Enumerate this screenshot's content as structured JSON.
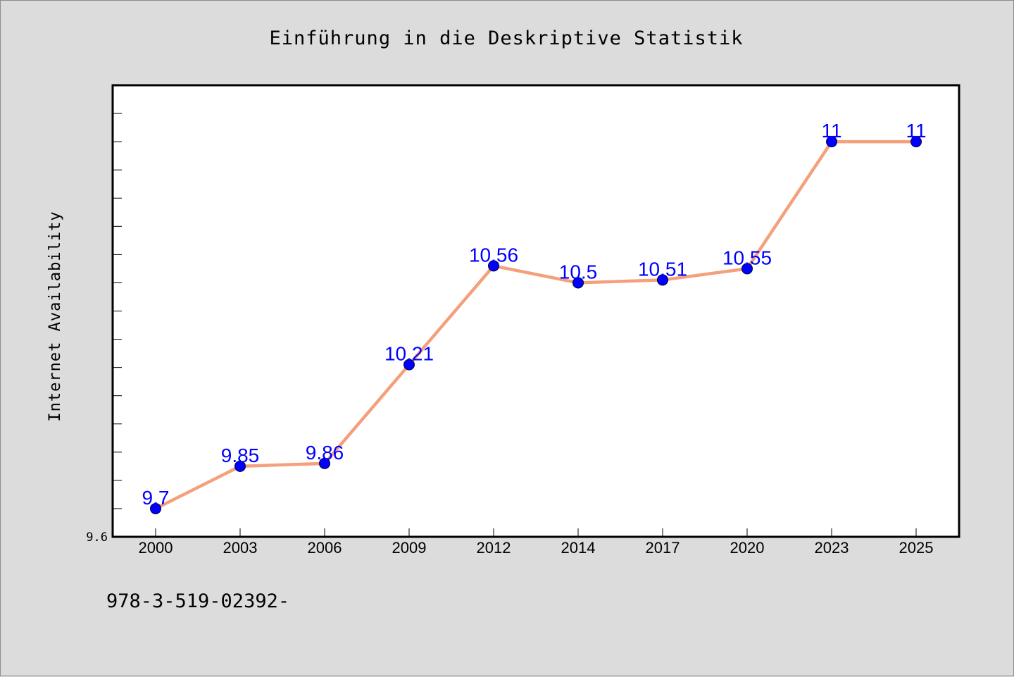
{
  "chart_data": {
    "type": "line",
    "title": "Einführung in die Deskriptive Statistik",
    "ylabel": "Internet Availability",
    "xlabel": "",
    "categories": [
      "2000",
      "2003",
      "2006",
      "2009",
      "2012",
      "2014",
      "2017",
      "2020",
      "2023",
      "2025"
    ],
    "series": [
      {
        "values": [
          9.7,
          9.85,
          9.86,
          10.21,
          10.56,
          10.5,
          10.51,
          10.55,
          11,
          11
        ]
      }
    ],
    "ylim": [
      9.6,
      11.2
    ],
    "y_tick_labels_shown": [
      "9.6"
    ],
    "line_color": "#f4a07c",
    "marker_color": "#0000ff",
    "label_color": "#0000ff",
    "plot_background": "#ffffff",
    "page_background": "#dcdcdc",
    "grid": false,
    "legend": "none"
  },
  "footer": {
    "text": "978-3-519-02392-"
  }
}
